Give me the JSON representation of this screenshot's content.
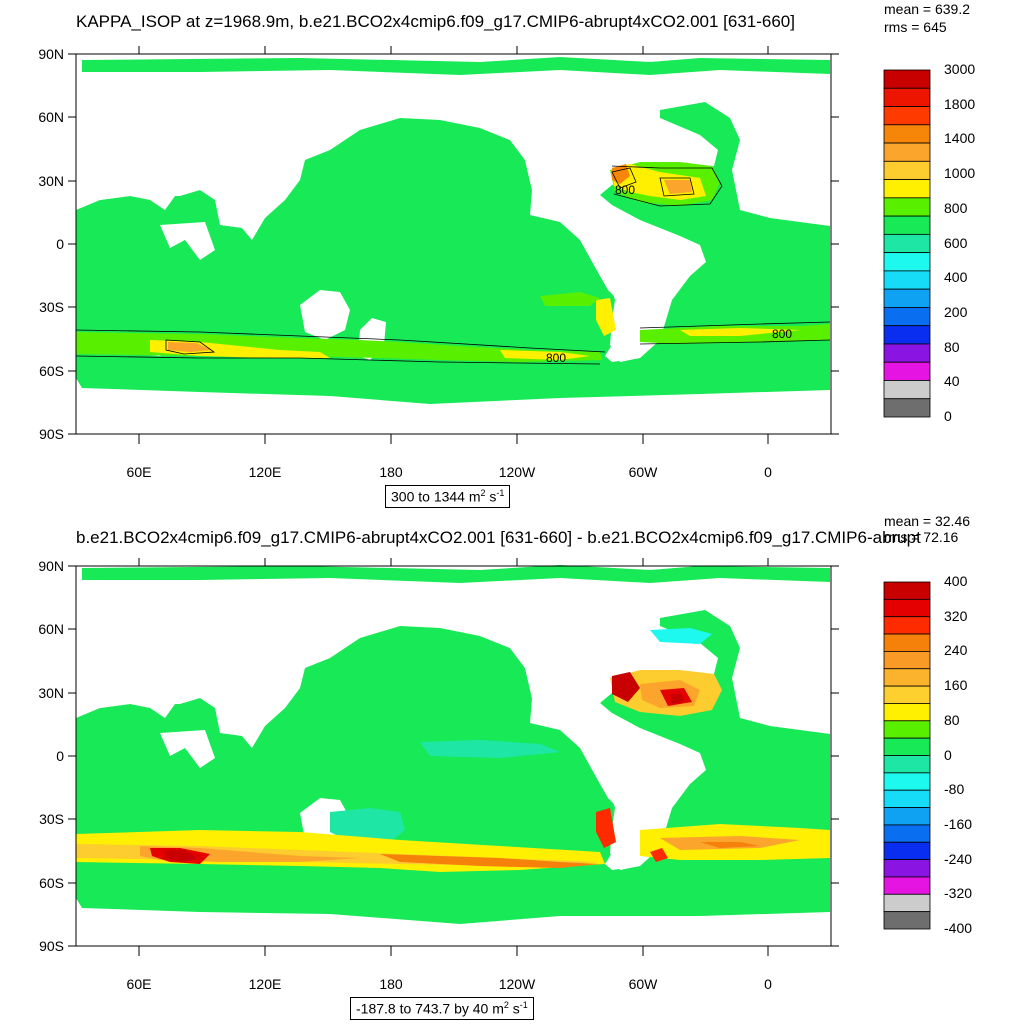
{
  "panels": [
    {
      "title": "KAPPA_ISOP at z=1968.9m, b.e21.BCO2x4cmip6.f09_g17.CMIP6-abrupt4xCO2.001 [631-660]",
      "mean": "mean = 639.2",
      "rms": "rms = 645",
      "range": "300 to 1344 m",
      "range_unit_tail": "2",
      "range_unit_s": " s",
      "range_unit_exp": "-1",
      "lat_labels": [
        "90N",
        "60N",
        "30N",
        "0",
        "30S",
        "60S",
        "90S"
      ],
      "lon_labels": [
        "60E",
        "120E",
        "180",
        "120W",
        "60W",
        "0"
      ],
      "contour_labels": [
        "800",
        "800",
        "800"
      ],
      "colorbar": {
        "labels": [
          "3000",
          "1800",
          "1400",
          "1000",
          "800",
          "600",
          "400",
          "200",
          "80",
          "40",
          "0"
        ],
        "colors": [
          "#c80000",
          "#ee1500",
          "#fe3a00",
          "#f5860a",
          "#fba52c",
          "#fdcd2f",
          "#fef000",
          "#59f000",
          "#17e957",
          "#1ee7a6",
          "#1ef9f0",
          "#16dcf8",
          "#10a2f2",
          "#0a6ef0",
          "#0a2ef0",
          "#8a14e2",
          "#e614e2",
          "#cccccc",
          "#6e6e6e"
        ]
      }
    },
    {
      "title": "b.e21.BCO2x4cmip6.f09_g17.CMIP6-abrupt4xCO2.001 [631-660] - b.e21.BCO2x4cmip6.f09_g17.CMIP6-abrupt",
      "mean": "mean = 32.46",
      "rms": "rms = 72.16",
      "range": "-187.8 to 743.7 by 40 m",
      "range_unit_tail": "2",
      "range_unit_s": " s",
      "range_unit_exp": "-1",
      "lat_labels": [
        "90N",
        "60N",
        "30N",
        "0",
        "30S",
        "60S",
        "90S"
      ],
      "lon_labels": [
        "60E",
        "120E",
        "180",
        "120W",
        "60W",
        "0"
      ],
      "colorbar": {
        "labels": [
          "400",
          "320",
          "240",
          "160",
          "80",
          "0",
          "-80",
          "-160",
          "-240",
          "-320",
          "-400"
        ],
        "colors": [
          "#c80000",
          "#e50000",
          "#fe2a00",
          "#f5800a",
          "#fa9a26",
          "#fbb22c",
          "#fdd02f",
          "#fef000",
          "#59f000",
          "#17e957",
          "#1ee7a6",
          "#1ef9f0",
          "#16dcf8",
          "#10a2f2",
          "#0a6ef0",
          "#0a2ef0",
          "#8a14e2",
          "#e614e2",
          "#cccccc",
          "#6e6e6e"
        ]
      }
    }
  ]
}
